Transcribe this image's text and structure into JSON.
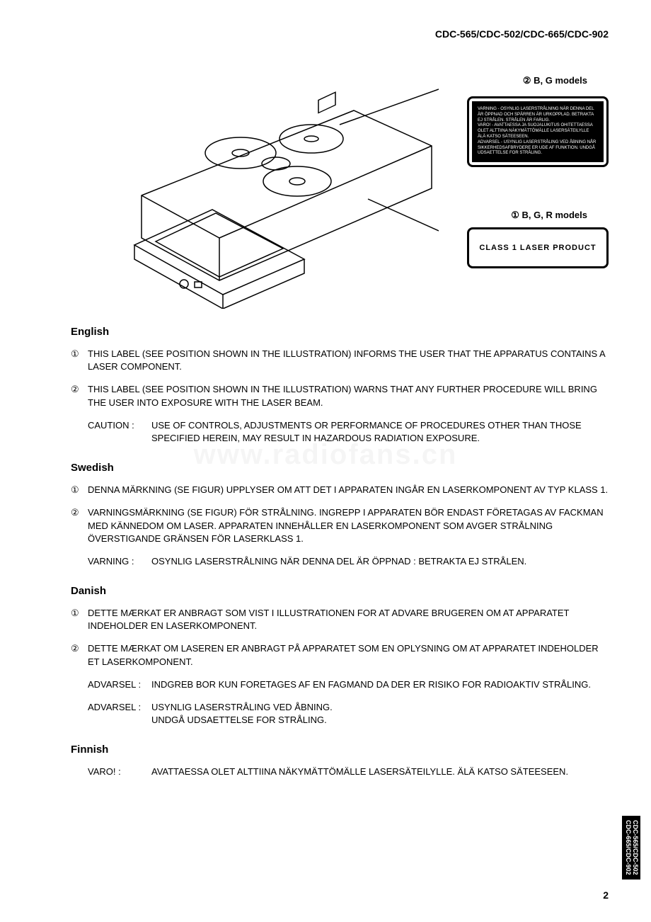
{
  "header": {
    "title": "CDC-565/CDC-502/CDC-665/CDC-902"
  },
  "figure": {
    "callout2": "② B, G models",
    "callout1": "① B, G, R models",
    "warning_box_dark_text": "VARNING - OSYNLIG LASERSTRÅLNING NÄR DENNA DEL ÄR ÖPPNAD OCH SPÄRREN ÄR URKOPPLAD. BETRAKTA EJ STRÅLEN. STRÅLEN ÄR FARLIG.\nVARO! - AVATTAESSA JA SUOJALUKITUS OHITETTAESSA OLET ALTTIINA NÄKYMÄTTÖMÄLLE LASERSÄTEILYLLE ÄLÄ KATSO SÄTEESEEN.\nADVARSEL - USYNLIG LASERSTRÅLING VED ÅBNING NÅR SIKKERHEDSAFBRYDERE ER UDE AF FUNKTION. UNDGÅ UDSAETTELSE FOR STRÅLING.",
    "class1_label": "CLASS 1 LASER PRODUCT"
  },
  "sections": [
    {
      "heading": "English",
      "items": [
        {
          "num": "①",
          "text": "THIS LABEL (SEE POSITION SHOWN IN THE ILLUSTRATION) INFORMS THE USER THAT THE APPARATUS CONTAINS A LASER COMPONENT."
        },
        {
          "num": "②",
          "text": "THIS LABEL (SEE POSITION SHOWN IN THE ILLUSTRATION) WARNS THAT ANY FURTHER PROCEDURE WILL BRING THE USER INTO EXPOSURE WITH THE LASER BEAM."
        }
      ],
      "cautions": [
        {
          "label": "CAUTION :",
          "text": "USE OF CONTROLS, ADJUSTMENTS OR PERFORMANCE OF PROCEDURES OTHER THAN THOSE SPECIFIED HEREIN, MAY RESULT IN HAZARDOUS RADIATION EXPOSURE."
        }
      ]
    },
    {
      "heading": "Swedish",
      "items": [
        {
          "num": "①",
          "text": "DENNA MÄRKNING (SE FIGUR) UPPLYSER OM ATT DET I APPARATEN INGÅR EN LASERKOMPONENT AV TYP KLASS 1."
        },
        {
          "num": "②",
          "text": "VARNINGSMÄRKNING (SE FIGUR) FÖR STRÅLNING. INGREPP I APPARATEN BÖR ENDAST FÖRETAGAS AV FACKMAN MED KÄNNEDOM OM LASER. APPARATEN INNEHÅLLER EN LASERKOMPONENT SOM AVGER STRÅLNING ÖVERSTIGANDE GRÄNSEN FÖR LASERKLASS 1."
        }
      ],
      "cautions": [
        {
          "label": "VARNING  :",
          "text": "OSYNLIG LASERSTRÅLNING NÄR DENNA DEL ÄR ÖPPNAD : BETRAKTA EJ STRÅLEN."
        }
      ]
    },
    {
      "heading": "Danish",
      "items": [
        {
          "num": "①",
          "text": "DETTE MÆRKAT ER ANBRAGT SOM VIST I ILLUSTRATIONEN FOR AT ADVARE BRUGEREN OM AT APPARATET INDEHOLDER EN LASERKOMPONENT."
        },
        {
          "num": "②",
          "text": "DETTE MÆRKAT OM LASEREN ER ANBRAGT PÅ APPARATET SOM EN OPLYSNING OM AT APPARATET INDEHOLDER ET LASERKOMPONENT."
        }
      ],
      "cautions": [
        {
          "label": "ADVARSEL :",
          "text": "INDGREB BOR KUN FORETAGES AF EN FAGMAND DA DER ER RISIKO FOR RADIOAKTIV STRÅLING."
        },
        {
          "label": "ADVARSEL :",
          "text": "USYNLIG LASERSTRÅLING VED ÅBNING.\nUNDGÅ UDSAETTELSE FOR STRÅLING."
        }
      ]
    },
    {
      "heading": "Finnish",
      "items": [],
      "cautions": [
        {
          "label": "VARO! :",
          "text": "AVATTAESSA OLET ALTTIINA NÄKYMÄTTÖMÄLLE LASERSÄTEILYLLE. ÄLÄ KATSO SÄTEESEEN."
        }
      ]
    }
  ],
  "page_number": "2",
  "side_tab": "CDC-565/CDC-502\nCDC-665/CDC-902",
  "watermark": "www.radiofans.cn"
}
